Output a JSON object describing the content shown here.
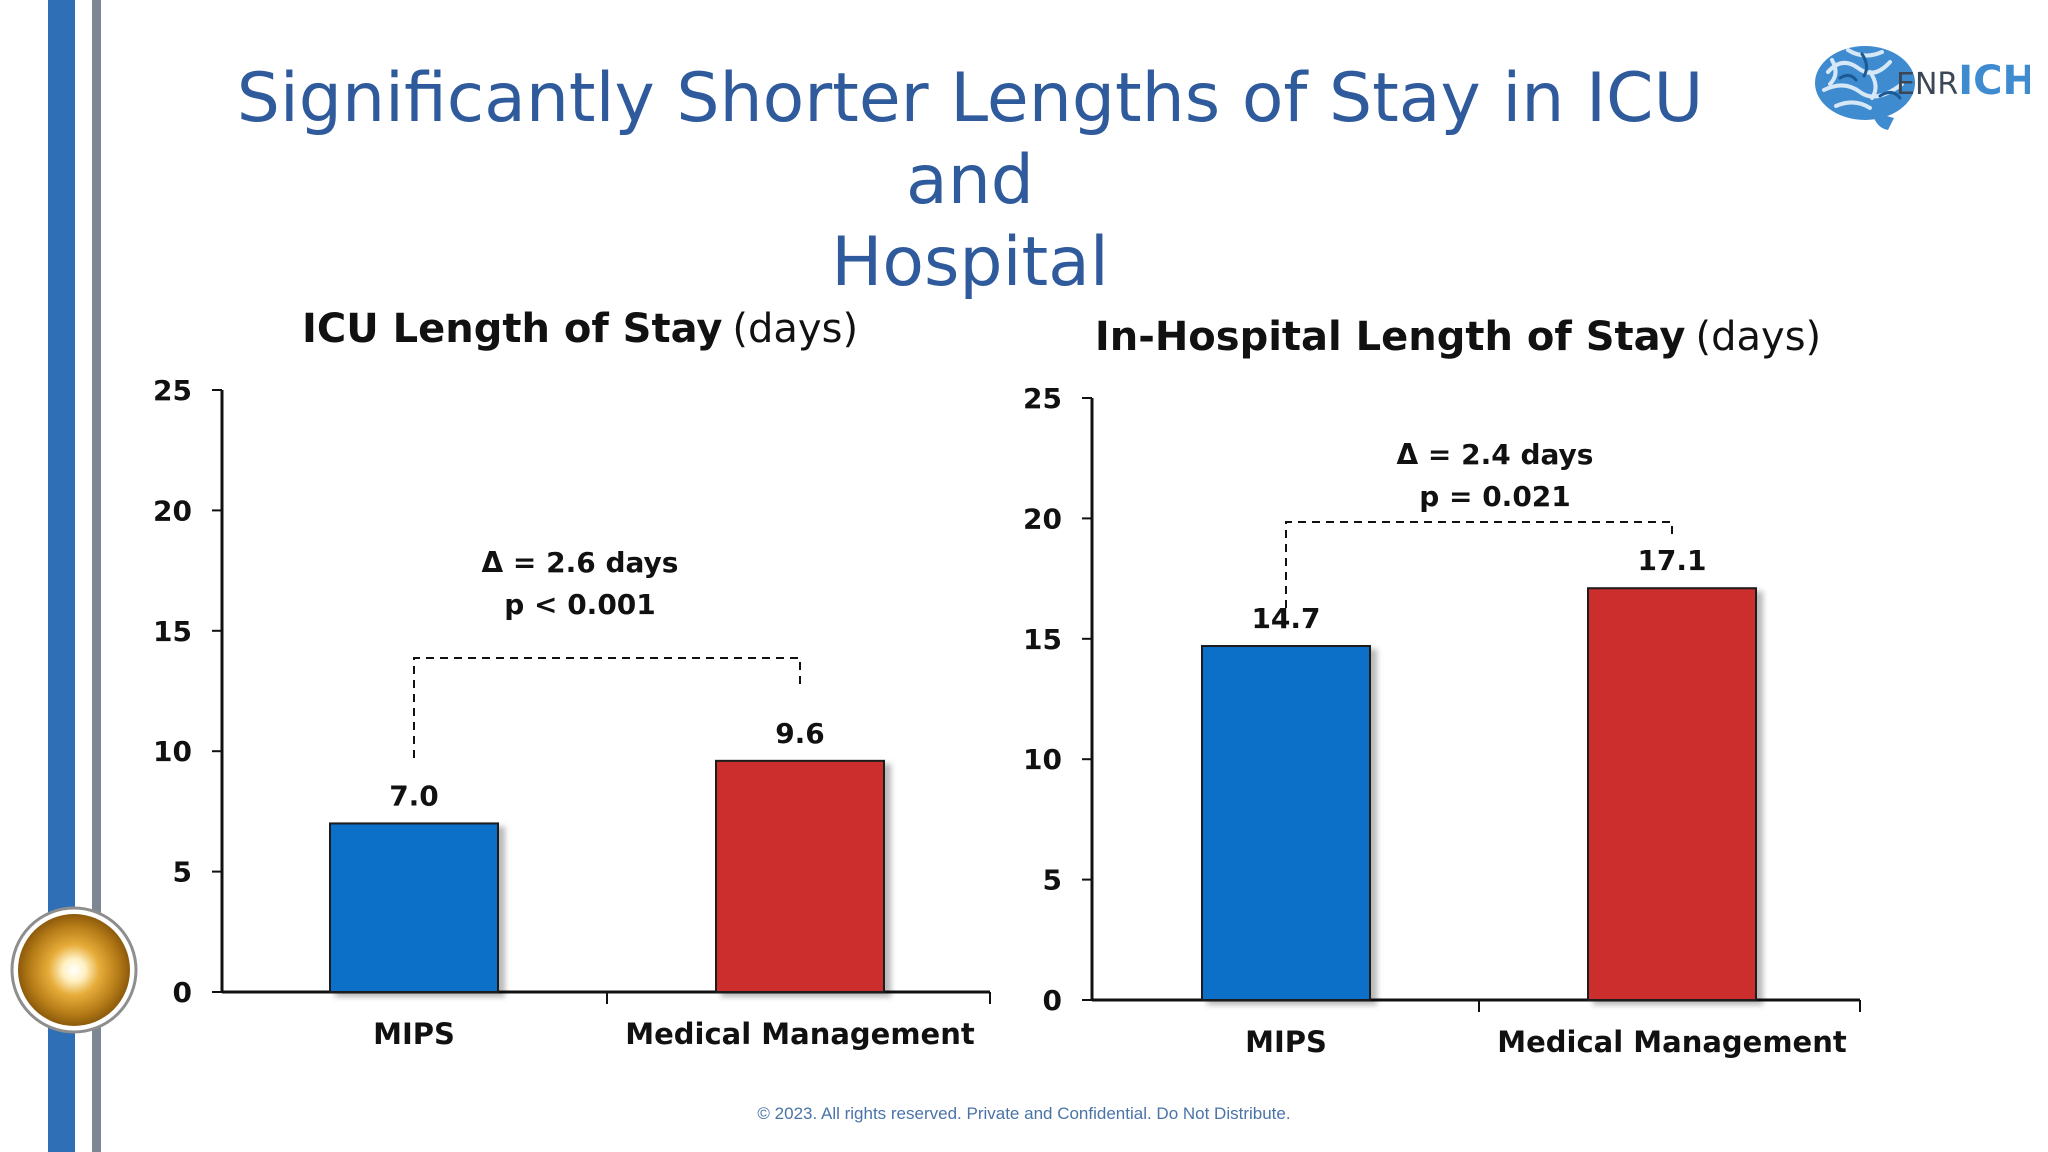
{
  "slide": {
    "title_line1": "Significantly Shorter Lengths of Stay in ICU and",
    "title_line2": "Hospital",
    "logo_text_a": "ENR",
    "logo_text_b": "ICH",
    "footer": "© 2023. All rights reserved. Private and Confidential. Do Not Distribute."
  },
  "colors": {
    "accent_blue": "#2e6fb5",
    "title_blue": "#2f5a9c",
    "bar_blue": "#0870c8",
    "bar_red": "#cc2e2e"
  },
  "chart_data": [
    {
      "type": "bar",
      "title_bold": "ICU Length of Stay",
      "title_unit": "(days)",
      "categories": [
        "MIPS",
        "Medical Management"
      ],
      "values": [
        7.0,
        9.6
      ],
      "value_labels": [
        "7.0",
        "9.6"
      ],
      "ylim": [
        0,
        25
      ],
      "yticks": [
        0,
        5,
        10,
        15,
        20,
        25
      ],
      "annotation_line1": "Δ = 2.6 days",
      "annotation_line2": "p < 0.001",
      "grid": false,
      "legend": "none"
    },
    {
      "type": "bar",
      "title_bold": "In-Hospital Length of Stay",
      "title_unit": "(days)",
      "categories": [
        "MIPS",
        "Medical Management"
      ],
      "values": [
        14.7,
        17.1
      ],
      "value_labels": [
        "14.7",
        "17.1"
      ],
      "ylim": [
        0,
        25
      ],
      "yticks": [
        0,
        5,
        10,
        15,
        20,
        25
      ],
      "annotation_line1": "Δ = 2.4 days",
      "annotation_line2": "p = 0.021",
      "grid": false,
      "legend": "none"
    }
  ]
}
